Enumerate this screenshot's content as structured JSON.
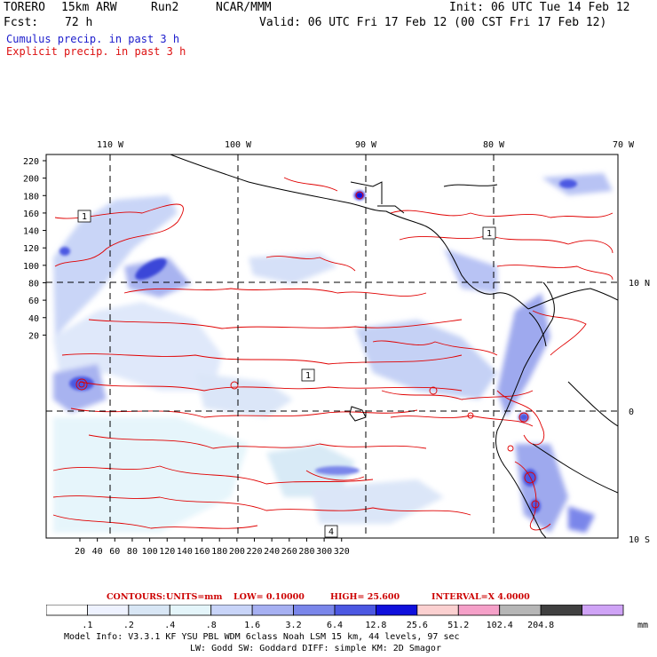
{
  "header": {
    "model": "TORERO",
    "resolution": "15km ARW",
    "run": "Run2",
    "org": "NCAR/MMM",
    "init": "Init: 06 UTC Tue 14 Feb 12",
    "fcst_label": "Fcst:",
    "fcst_value": "72 h",
    "valid": "Valid: 06 UTC Fri 17 Feb 12 (00 CST Fri 17 Feb 12)"
  },
  "legend_lines": {
    "cumulus": "Cumulus precip. in past 3 h",
    "explicit": "Explicit precip. in past 3 h"
  },
  "map": {
    "lon_labels": [
      "110 W",
      "100 W",
      "90 W",
      "80 W",
      "70 W"
    ],
    "lat_labels": [
      "10 N",
      "0",
      "10 S"
    ],
    "y_ticks": [
      "220",
      "200",
      "180",
      "160",
      "140",
      "120",
      "100",
      "80",
      "60",
      "40",
      "20"
    ],
    "x_ticks": [
      "20",
      "40",
      "60",
      "80",
      "100",
      "120",
      "140",
      "160",
      "180",
      "200",
      "220",
      "240",
      "260",
      "280",
      "300",
      "320"
    ],
    "box_labels": [
      "1",
      "1",
      "4",
      "1"
    ]
  },
  "contours_line": {
    "label": "CONTOURS:",
    "units": "UNITS=mm",
    "low": "LOW= 0.10000",
    "high": "HIGH=  25.600",
    "interval": "INTERVAL=X  4.0000"
  },
  "colorbar": {
    "labels": [
      ".1",
      ".2",
      ".4",
      ".8",
      "1.6",
      "3.2",
      "6.4",
      "12.8",
      "25.6",
      "51.2",
      "102.4",
      "204.8"
    ],
    "units": "mm",
    "colors": [
      "#ffffff",
      "#eef2ff",
      "#d8e6f5",
      "#e4f5fa",
      "#c8d4f8",
      "#a6b0f2",
      "#7a86ea",
      "#4c58e2",
      "#1010dc",
      "#fbd0d0",
      "#f5a0c8",
      "#b6b6b6",
      "#404040",
      "#cfa3f6"
    ]
  },
  "footer": {
    "line1": "Model Info: V3.3.1    KF     YSU PBL   WDM 6class  Noah LSM  15 km,    44 levels,    97 sec",
    "line2": "LW: Godd SW: Goddard DIFF: simple KM: 2D Smagor"
  }
}
